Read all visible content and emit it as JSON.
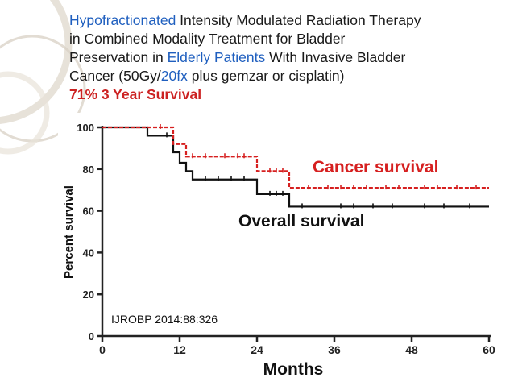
{
  "slide": {
    "title_line1": [
      "Hypofractionated",
      " Intensity Modulated Radiation Therapy"
    ],
    "title_line2": "in Combined Modality Treatment for Bladder",
    "title_line3": [
      "Preservation in ",
      "Elderly",
      " ",
      "Patients",
      " With Invasive Bladder"
    ],
    "title_line4": [
      "Cancer (50Gy/",
      "20fx",
      " plus gemzar or cisplatin)"
    ],
    "survival_headline": "71% 3 Year Survival",
    "colors": {
      "blue": "#1f5fbf",
      "red": "#cc2222",
      "text": "#1a1a1a"
    }
  },
  "chart_data": {
    "type": "line",
    "step": true,
    "xlabel": "Months",
    "ylabel": "Percent survival",
    "xlim": [
      0,
      60
    ],
    "ylim": [
      0,
      100
    ],
    "xticks": [
      0,
      12,
      24,
      36,
      48,
      60
    ],
    "yticks": [
      0,
      20,
      40,
      60,
      80,
      100
    ],
    "annotations": {
      "cancer": "Cancer survival",
      "overall": "Overall survival",
      "citation": "IJROBP 2014:88:326"
    },
    "series": [
      {
        "key": "cancer",
        "color": "#d62020",
        "x": [
          0,
          11,
          11,
          13,
          13,
          24,
          24,
          29,
          29,
          60
        ],
        "y": [
          100,
          100,
          92,
          92,
          86,
          86,
          79,
          79,
          71,
          71
        ],
        "censor_x": [
          9,
          14,
          16,
          19,
          21,
          22,
          26,
          27,
          28,
          32,
          35,
          37,
          39,
          41,
          44,
          46,
          50,
          52,
          55,
          58
        ]
      },
      {
        "key": "overall",
        "color": "#111111",
        "x": [
          0,
          7,
          7,
          11,
          11,
          12,
          12,
          13,
          13,
          14,
          14,
          24,
          24,
          29,
          29,
          60
        ],
        "y": [
          100,
          100,
          96,
          96,
          88,
          88,
          83,
          83,
          79,
          79,
          75,
          75,
          68,
          68,
          62,
          62
        ],
        "censor_x": [
          10,
          16,
          18,
          20,
          22,
          26,
          27,
          28,
          31,
          37,
          39,
          42,
          45,
          50,
          53,
          57
        ]
      }
    ]
  }
}
